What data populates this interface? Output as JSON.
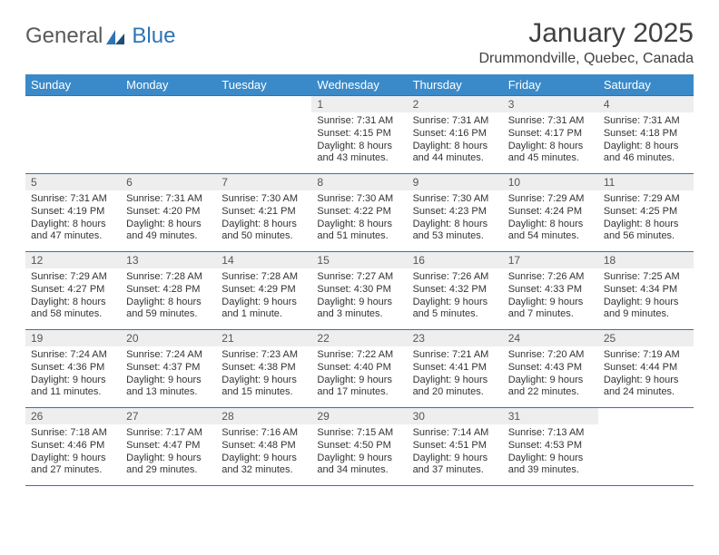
{
  "logo": {
    "general": "General",
    "blue": "Blue"
  },
  "title": "January 2025",
  "location": "Drummondville, Quebec, Canada",
  "weekdays": [
    "Sunday",
    "Monday",
    "Tuesday",
    "Wednesday",
    "Thursday",
    "Friday",
    "Saturday"
  ],
  "header_bg": "#3a8ac9",
  "header_fg": "#ffffff",
  "rule_color": "#2e75b6",
  "daynum_bg": "#eeeeee",
  "weeks": [
    [
      null,
      null,
      null,
      {
        "n": "1",
        "sr": "7:31 AM",
        "ss": "4:15 PM",
        "dl": "8 hours and 43 minutes."
      },
      {
        "n": "2",
        "sr": "7:31 AM",
        "ss": "4:16 PM",
        "dl": "8 hours and 44 minutes."
      },
      {
        "n": "3",
        "sr": "7:31 AM",
        "ss": "4:17 PM",
        "dl": "8 hours and 45 minutes."
      },
      {
        "n": "4",
        "sr": "7:31 AM",
        "ss": "4:18 PM",
        "dl": "8 hours and 46 minutes."
      }
    ],
    [
      {
        "n": "5",
        "sr": "7:31 AM",
        "ss": "4:19 PM",
        "dl": "8 hours and 47 minutes."
      },
      {
        "n": "6",
        "sr": "7:31 AM",
        "ss": "4:20 PM",
        "dl": "8 hours and 49 minutes."
      },
      {
        "n": "7",
        "sr": "7:30 AM",
        "ss": "4:21 PM",
        "dl": "8 hours and 50 minutes."
      },
      {
        "n": "8",
        "sr": "7:30 AM",
        "ss": "4:22 PM",
        "dl": "8 hours and 51 minutes."
      },
      {
        "n": "9",
        "sr": "7:30 AM",
        "ss": "4:23 PM",
        "dl": "8 hours and 53 minutes."
      },
      {
        "n": "10",
        "sr": "7:29 AM",
        "ss": "4:24 PM",
        "dl": "8 hours and 54 minutes."
      },
      {
        "n": "11",
        "sr": "7:29 AM",
        "ss": "4:25 PM",
        "dl": "8 hours and 56 minutes."
      }
    ],
    [
      {
        "n": "12",
        "sr": "7:29 AM",
        "ss": "4:27 PM",
        "dl": "8 hours and 58 minutes."
      },
      {
        "n": "13",
        "sr": "7:28 AM",
        "ss": "4:28 PM",
        "dl": "8 hours and 59 minutes."
      },
      {
        "n": "14",
        "sr": "7:28 AM",
        "ss": "4:29 PM",
        "dl": "9 hours and 1 minute."
      },
      {
        "n": "15",
        "sr": "7:27 AM",
        "ss": "4:30 PM",
        "dl": "9 hours and 3 minutes."
      },
      {
        "n": "16",
        "sr": "7:26 AM",
        "ss": "4:32 PM",
        "dl": "9 hours and 5 minutes."
      },
      {
        "n": "17",
        "sr": "7:26 AM",
        "ss": "4:33 PM",
        "dl": "9 hours and 7 minutes."
      },
      {
        "n": "18",
        "sr": "7:25 AM",
        "ss": "4:34 PM",
        "dl": "9 hours and 9 minutes."
      }
    ],
    [
      {
        "n": "19",
        "sr": "7:24 AM",
        "ss": "4:36 PM",
        "dl": "9 hours and 11 minutes."
      },
      {
        "n": "20",
        "sr": "7:24 AM",
        "ss": "4:37 PM",
        "dl": "9 hours and 13 minutes."
      },
      {
        "n": "21",
        "sr": "7:23 AM",
        "ss": "4:38 PM",
        "dl": "9 hours and 15 minutes."
      },
      {
        "n": "22",
        "sr": "7:22 AM",
        "ss": "4:40 PM",
        "dl": "9 hours and 17 minutes."
      },
      {
        "n": "23",
        "sr": "7:21 AM",
        "ss": "4:41 PM",
        "dl": "9 hours and 20 minutes."
      },
      {
        "n": "24",
        "sr": "7:20 AM",
        "ss": "4:43 PM",
        "dl": "9 hours and 22 minutes."
      },
      {
        "n": "25",
        "sr": "7:19 AM",
        "ss": "4:44 PM",
        "dl": "9 hours and 24 minutes."
      }
    ],
    [
      {
        "n": "26",
        "sr": "7:18 AM",
        "ss": "4:46 PM",
        "dl": "9 hours and 27 minutes."
      },
      {
        "n": "27",
        "sr": "7:17 AM",
        "ss": "4:47 PM",
        "dl": "9 hours and 29 minutes."
      },
      {
        "n": "28",
        "sr": "7:16 AM",
        "ss": "4:48 PM",
        "dl": "9 hours and 32 minutes."
      },
      {
        "n": "29",
        "sr": "7:15 AM",
        "ss": "4:50 PM",
        "dl": "9 hours and 34 minutes."
      },
      {
        "n": "30",
        "sr": "7:14 AM",
        "ss": "4:51 PM",
        "dl": "9 hours and 37 minutes."
      },
      {
        "n": "31",
        "sr": "7:13 AM",
        "ss": "4:53 PM",
        "dl": "9 hours and 39 minutes."
      },
      null
    ]
  ],
  "labels": {
    "sunrise": "Sunrise:",
    "sunset": "Sunset:",
    "daylight": "Daylight:"
  }
}
